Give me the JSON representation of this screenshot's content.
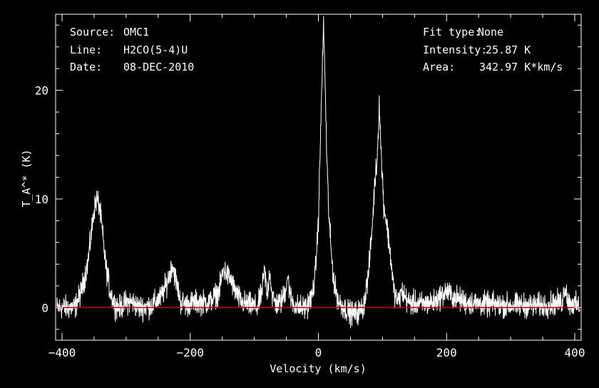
{
  "info_left": {
    "source_label": "Source:",
    "source_value": "OMC1",
    "line_label": "Line:",
    "line_value": "H2CO(5-4)U",
    "date_label": "Date:",
    "date_value": "08-DEC-2010"
  },
  "info_right": {
    "fit_label": "Fit type:",
    "fit_value": "None",
    "intensity_label": "Intensity:",
    "intensity_value": "25.87 K",
    "area_label": "Area:",
    "area_value": "342.97 K*km/s"
  },
  "chart_data": {
    "type": "line",
    "xlabel": "Velocity (km/s)",
    "ylabel": "T_A^* (K)",
    "xlim": [
      -410,
      410
    ],
    "ylim": [
      -3,
      27
    ],
    "x_ticks": [
      -400,
      -200,
      0,
      200,
      400
    ],
    "y_ticks": [
      0,
      10,
      20
    ],
    "grid": false,
    "baseline": 0,
    "colors": {
      "spectrum": "#ffffff",
      "baseline": "#cc0000",
      "axes": "#ffffff",
      "background": "#000000"
    },
    "series": [
      {
        "x": [
          -410,
          -380,
          -370,
          -360,
          -355,
          -350,
          -346,
          -342,
          -338,
          -332,
          -325,
          -318,
          -310,
          -300,
          -290,
          -280,
          -260,
          -245,
          -235,
          -228,
          -222,
          -215,
          -205,
          -190,
          -170,
          -155,
          -148,
          -142,
          -136,
          -130,
          -120,
          -105,
          -95,
          -88,
          -84,
          -80,
          -76,
          -72,
          -66,
          -58,
          -52,
          -48,
          -44,
          -38,
          -30,
          -20,
          -10,
          -5,
          0,
          3,
          6,
          8,
          10,
          13,
          16,
          20,
          25,
          32,
          40,
          50,
          60,
          70,
          78,
          84,
          88,
          92,
          95,
          98,
          102,
          106,
          112,
          118,
          124,
          130,
          140,
          160,
          180,
          200,
          210,
          230,
          260,
          300,
          350,
          380,
          385,
          390,
          410
        ],
        "y": [
          0,
          0,
          1.5,
          4,
          6.5,
          9,
          10,
          9.5,
          7.5,
          4,
          1.5,
          0.3,
          0,
          0.5,
          0.5,
          0,
          0.2,
          1,
          2.5,
          4,
          2.5,
          0.5,
          0.3,
          0.5,
          0.5,
          1.5,
          3.5,
          3,
          2.5,
          1.5,
          0.5,
          0.2,
          0,
          1.5,
          3.5,
          1,
          3.5,
          1,
          0.3,
          0.5,
          1.5,
          3,
          1,
          0.3,
          0,
          0,
          1,
          3,
          8,
          15,
          22,
          26,
          22,
          14,
          9,
          5,
          2,
          0.5,
          0,
          -0.5,
          -0.5,
          0,
          3,
          7.5,
          11.5,
          14,
          19,
          14,
          9.5,
          8,
          5,
          1.5,
          0.5,
          1.5,
          0.5,
          0.3,
          0.5,
          1.5,
          1,
          0.5,
          0.3,
          0.2,
          0.2,
          0.5,
          2,
          0.5,
          0
        ]
      }
    ]
  }
}
